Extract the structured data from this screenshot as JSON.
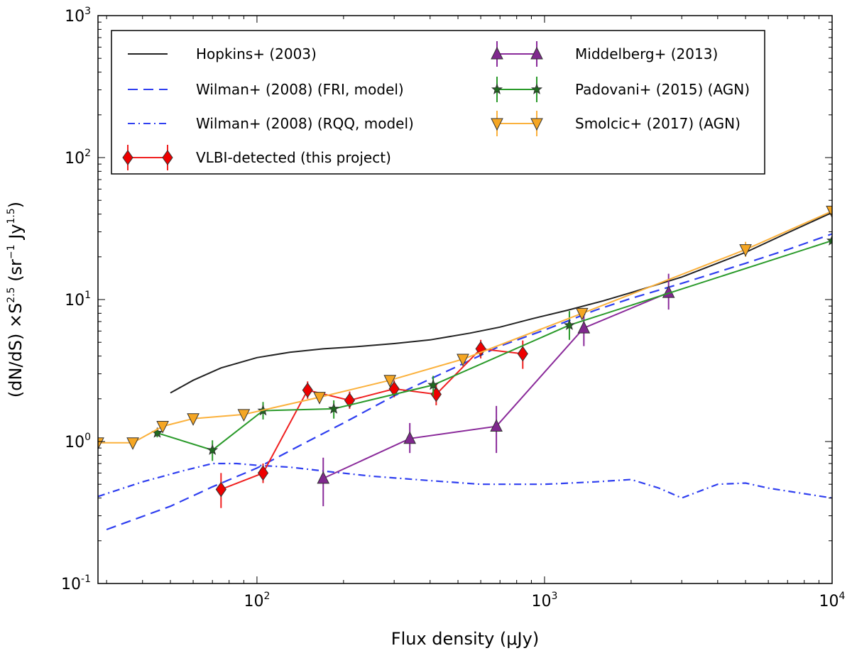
{
  "chart_data": {
    "type": "line",
    "title": "",
    "xlabel": "Flux density (μJy)",
    "ylabel": "(dN/dS) ×S^2.5 (sr^-1 Jy^1.5)",
    "ylabel_parts": {
      "pre": "(dN/dS) ×S",
      "exp1": "2.5",
      "mid": " (sr",
      "exp2": "−1",
      "mid2": " Jy",
      "exp3": "1.5",
      "post": ")"
    },
    "xscale": "log",
    "yscale": "log",
    "xlim": [
      28,
      10000
    ],
    "ylim": [
      0.1,
      1000
    ],
    "x_ticks": [
      {
        "value": 100,
        "base": "10",
        "exp": "2"
      },
      {
        "value": 1000,
        "base": "10",
        "exp": "3"
      },
      {
        "value": 10000,
        "base": "10",
        "exp": "4"
      }
    ],
    "y_ticks": [
      {
        "value": 0.1,
        "base": "10",
        "exp": "-1"
      },
      {
        "value": 1,
        "base": "10",
        "exp": "0"
      },
      {
        "value": 10,
        "base": "10",
        "exp": "1"
      },
      {
        "value": 100,
        "base": "10",
        "exp": "2"
      },
      {
        "value": 1000,
        "base": "10",
        "exp": "3"
      }
    ],
    "legend_position": "top",
    "series": [
      {
        "name": "Hopkins+ (2003)",
        "color": "#222222",
        "style": "solid",
        "marker": "none",
        "x": [
          50,
          60,
          75,
          100,
          130,
          170,
          220,
          300,
          400,
          550,
          700,
          900,
          1200,
          1600,
          2000,
          3000,
          5000,
          7000,
          10000
        ],
        "y": [
          2.2,
          2.7,
          3.3,
          3.9,
          4.25,
          4.5,
          4.65,
          4.9,
          5.2,
          5.8,
          6.4,
          7.3,
          8.4,
          9.8,
          11.2,
          14.4,
          21.5,
          29.5,
          41
        ]
      },
      {
        "name": "Wilman+ (2008) (FRI, model)",
        "color": "#2f3ff0",
        "style": "dashed",
        "marker": "none",
        "x": [
          30,
          50,
          70,
          100,
          150,
          200,
          300,
          500,
          700,
          1000,
          1500,
          2000,
          3000,
          5000,
          7000,
          10000
        ],
        "y": [
          0.24,
          0.35,
          0.48,
          0.65,
          1.0,
          1.35,
          2.1,
          3.4,
          4.7,
          6.1,
          8.4,
          10.2,
          13.0,
          18.0,
          22.5,
          29.0
        ]
      },
      {
        "name": "Wilman+ (2008) (RQQ, model)",
        "color": "#2f3ff0",
        "style": "dashdot",
        "marker": "none",
        "x": [
          28,
          40,
          55,
          70,
          85,
          100,
          130,
          170,
          250,
          400,
          600,
          1000,
          1500,
          2000,
          2500,
          3000,
          4000,
          5000,
          6000,
          10000
        ],
        "y": [
          0.41,
          0.52,
          0.62,
          0.7,
          0.7,
          0.68,
          0.66,
          0.62,
          0.57,
          0.53,
          0.5,
          0.5,
          0.52,
          0.54,
          0.47,
          0.4,
          0.5,
          0.51,
          0.47,
          0.4
        ]
      },
      {
        "name": "VLBI-detected (this project)",
        "color": "#f02020",
        "style": "solid",
        "marker": "diamond",
        "marker_color": "#ee0000",
        "x": [
          75,
          105,
          150,
          210,
          300,
          420,
          600,
          840
        ],
        "y": [
          0.46,
          0.6,
          2.3,
          1.95,
          2.35,
          2.15,
          4.5,
          4.15
        ],
        "err_lo": [
          0.12,
          0.09,
          0.3,
          0.25,
          0.3,
          0.35,
          0.65,
          0.9
        ],
        "err_hi": [
          0.14,
          0.1,
          0.35,
          0.3,
          0.35,
          0.4,
          0.7,
          1.0
        ]
      },
      {
        "name": "Middelberg+ (2013)",
        "color": "#8a2a9a",
        "style": "solid",
        "marker": "triangle-up",
        "marker_color": "#80288e",
        "x": [
          170,
          340,
          680,
          1370,
          2700
        ],
        "y": [
          0.55,
          1.05,
          1.28,
          6.3,
          11.2
        ],
        "err_lo": [
          0.2,
          0.22,
          0.45,
          1.6,
          2.7
        ],
        "err_hi": [
          0.22,
          0.3,
          0.5,
          1.8,
          4.0
        ]
      },
      {
        "name": "Padovani+ (2015) (AGN)",
        "color": "#2a9a2a",
        "style": "solid",
        "marker": "star",
        "marker_color": "#1f6b1f",
        "x": [
          45,
          70,
          105,
          185,
          410,
          1220,
          10000
        ],
        "y": [
          1.15,
          0.87,
          1.65,
          1.7,
          2.5,
          6.6,
          26
        ],
        "err_lo": [
          0.08,
          0.14,
          0.22,
          0.25,
          0.4,
          1.4,
          0
        ],
        "err_hi": [
          0.08,
          0.15,
          0.25,
          0.25,
          0.4,
          1.7,
          0
        ]
      },
      {
        "name": "Smolcic+ (2017) (AGN)",
        "color": "#fbb13c",
        "style": "solid",
        "marker": "triangle-down",
        "marker_color": "#f5a623",
        "x": [
          28,
          37,
          47,
          60,
          90,
          165,
          290,
          520,
          1350,
          5000,
          10000
        ],
        "y": [
          0.98,
          0.98,
          1.28,
          1.45,
          1.55,
          2.05,
          2.7,
          3.8,
          8.0,
          22.5,
          42
        ],
        "err_lo": [
          0,
          0.05,
          0.05,
          0.05,
          0.05,
          0.1,
          0.15,
          0.2,
          0.4,
          2.5,
          0
        ],
        "err_hi": [
          0,
          0.05,
          0.05,
          0.05,
          0.05,
          0.1,
          0.15,
          0.2,
          0.4,
          3.0,
          0
        ]
      }
    ]
  }
}
